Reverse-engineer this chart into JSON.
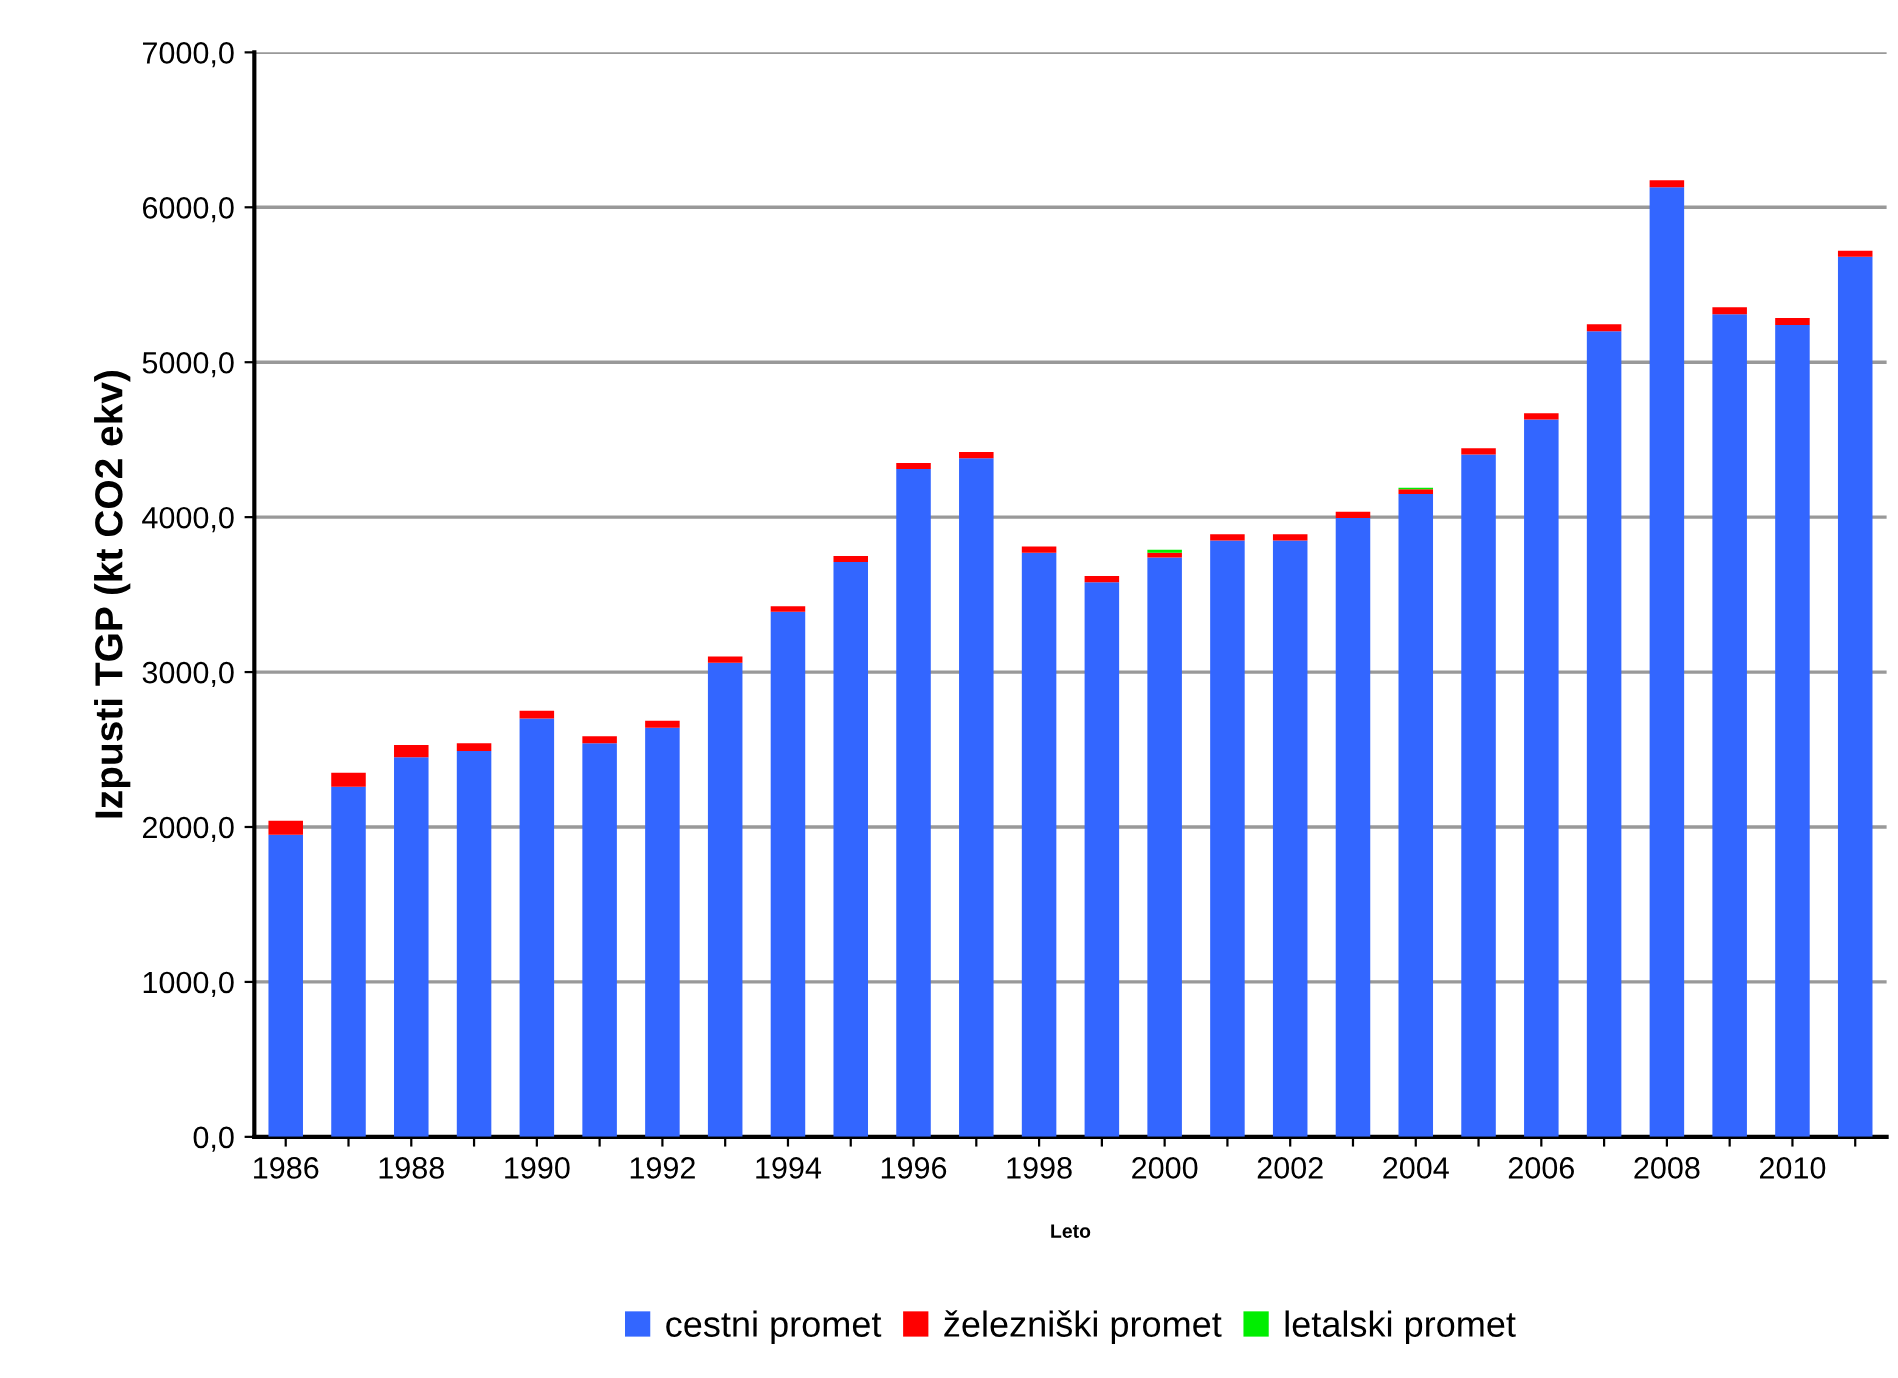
{
  "chart_data": {
    "type": "bar",
    "stacked": true,
    "xlabel": "Leto",
    "ylabel": "Izpusti TGP (kt CO2 ekv)",
    "categories": [
      "1986",
      null,
      "1988",
      null,
      "1990",
      null,
      "1992",
      null,
      "1994",
      null,
      "1996",
      null,
      "1998",
      null,
      "2000",
      null,
      "2002",
      null,
      "2004",
      null,
      "2006",
      null,
      "2008",
      null,
      "2010",
      null
    ],
    "series": [
      {
        "name": "cestni promet",
        "color": "#3366ff",
        "values": [
          1950,
          2260,
          2450,
          2490,
          2700,
          2540,
          2640,
          3060,
          3390,
          3710,
          4310,
          4380,
          3770,
          3580,
          3740,
          3850,
          3850,
          3995,
          4150,
          4405,
          4630,
          5200,
          6130,
          5310,
          5240,
          5680
        ]
      },
      {
        "name": "železniški promet",
        "color": "#ff0000",
        "values": [
          90,
          90,
          80,
          50,
          50,
          45,
          45,
          40,
          35,
          40,
          40,
          40,
          40,
          40,
          30,
          40,
          40,
          40,
          30,
          40,
          40,
          45,
          45,
          45,
          45,
          40
        ]
      },
      {
        "name": "letalski promet",
        "color": "#00ee00",
        "values": [
          0,
          0,
          0,
          0,
          0,
          0,
          0,
          0,
          0,
          0,
          0,
          0,
          0,
          0,
          20,
          0,
          0,
          0,
          10,
          0,
          0,
          0,
          0,
          0,
          0,
          0
        ]
      }
    ],
    "ylim": [
      0,
      7000
    ],
    "yticks": [
      {
        "value": 0,
        "label": "0,0"
      },
      {
        "value": 1000,
        "label": "1000,0"
      },
      {
        "value": 2000,
        "label": "2000,0"
      },
      {
        "value": 3000,
        "label": "3000,0"
      },
      {
        "value": 4000,
        "label": "4000,0"
      },
      {
        "value": 5000,
        "label": "5000,0"
      },
      {
        "value": 6000,
        "label": "6000,0"
      },
      {
        "value": 7000,
        "label": "7000,0"
      }
    ],
    "grid": "y",
    "legend": "bottom"
  }
}
